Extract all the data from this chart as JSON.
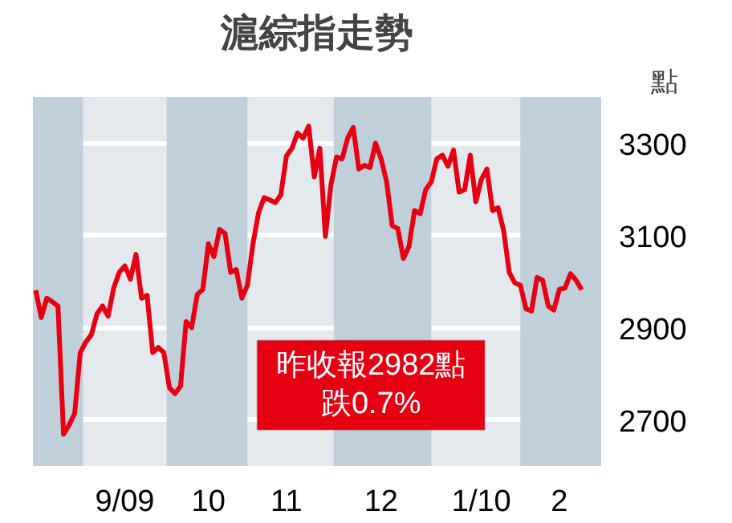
{
  "chart_data": {
    "type": "line",
    "title": "滬綜指走勢",
    "ylabel": "點",
    "categories": [
      null,
      null,
      null,
      null,
      null,
      null,
      null,
      null,
      null,
      null,
      null,
      null,
      null,
      null,
      null,
      null,
      "9/09",
      null,
      null,
      null,
      null,
      null,
      null,
      null,
      null,
      null,
      null,
      null,
      null,
      null,
      null,
      "10",
      null,
      null,
      null,
      null,
      null,
      null,
      null,
      null,
      null,
      null,
      null,
      null,
      null,
      "11",
      null,
      null,
      null,
      null,
      null,
      null,
      null,
      null,
      null,
      null,
      null,
      null,
      null,
      null,
      null,
      null,
      "12",
      null,
      null,
      null,
      null,
      null,
      null,
      null,
      null,
      null,
      null,
      null,
      null,
      null,
      null,
      null,
      null,
      null,
      "1/10",
      null,
      null,
      null,
      null,
      null,
      null,
      null,
      null,
      null,
      null,
      null,
      null,
      null,
      "2",
      null,
      null,
      null,
      null,
      null,
      null,
      null
    ],
    "series": [
      {
        "color": "#e60012",
        "values": [
          2981,
          2922,
          2964,
          2956,
          2947,
          2669,
          2689,
          2714,
          2846,
          2869,
          2885,
          2930,
          2947,
          2925,
          2986,
          3020,
          3034,
          3005,
          3059,
          2964,
          2970,
          2846,
          2857,
          2846,
          2770,
          2757,
          2773,
          2913,
          2900,
          2972,
          2983,
          3082,
          3054,
          3113,
          3104,
          3020,
          3026,
          2964,
          2992,
          3082,
          3149,
          3182,
          3177,
          3171,
          3188,
          3272,
          3289,
          3322,
          3311,
          3337,
          3227,
          3289,
          3098,
          3210,
          3270,
          3266,
          3311,
          3334,
          3244,
          3252,
          3247,
          3300,
          3266,
          3216,
          3121,
          3115,
          3050,
          3076,
          3154,
          3147,
          3199,
          3216,
          3266,
          3274,
          3250,
          3285,
          3194,
          3199,
          3274,
          3173,
          3222,
          3244,
          3154,
          3160,
          3110,
          3020,
          2997,
          2992,
          2941,
          2936,
          3009,
          3003,
          2947,
          2938,
          2983,
          2986,
          3017,
          3003,
          2982,
          null,
          null,
          null
        ]
      }
    ],
    "ylim": [
      2600,
      3400
    ],
    "yticks": [
      2700,
      2900,
      3100,
      3300
    ],
    "grid": "y",
    "line_style": "solid",
    "annotations": [
      "昨收報2982點",
      "跌0.7%"
    ]
  }
}
